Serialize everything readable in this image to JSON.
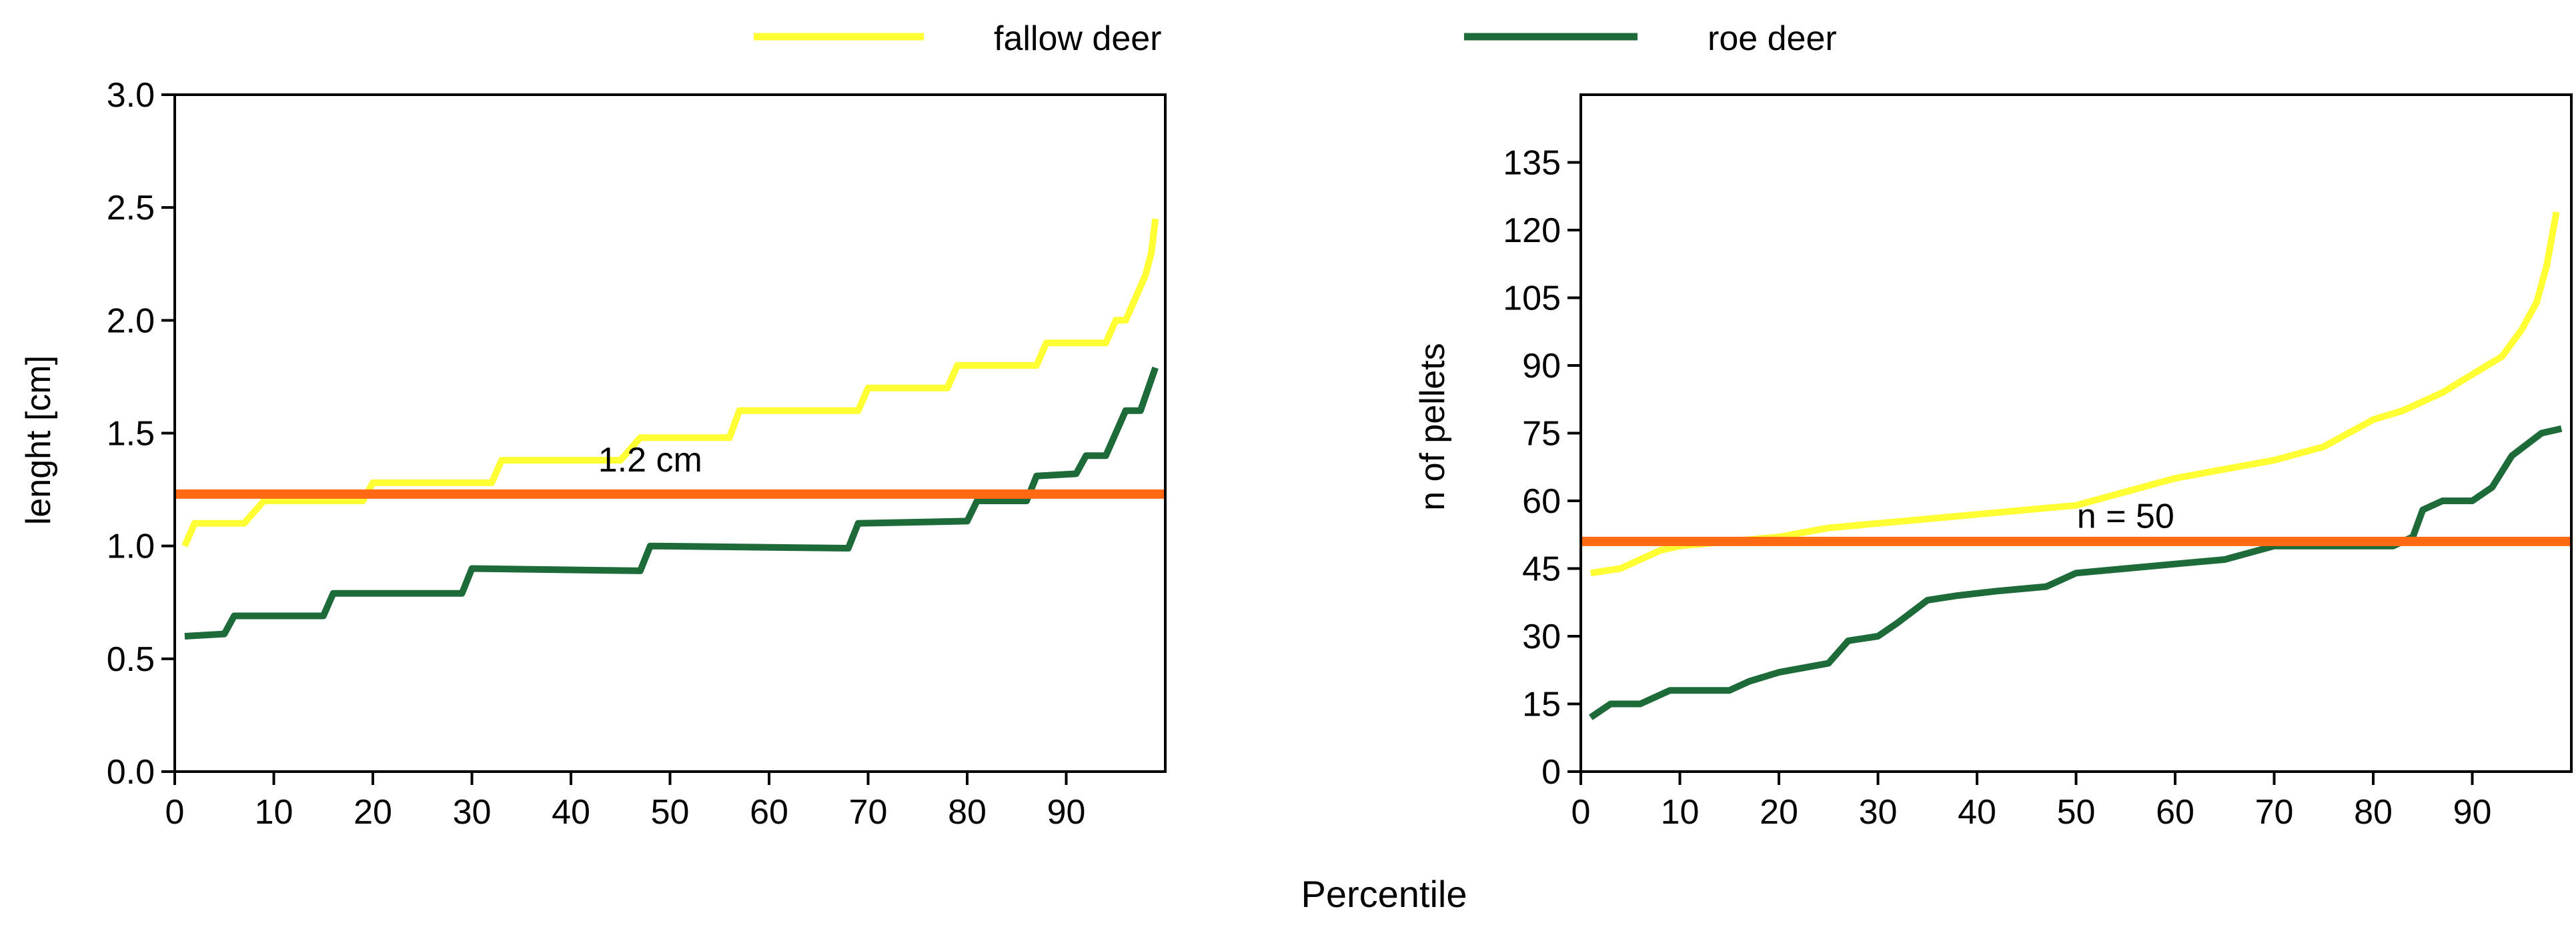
{
  "legend": {
    "position": "top",
    "entries": [
      {
        "name": "fallow deer",
        "color": "#ffff33"
      },
      {
        "name": "roe deer",
        "color": "#1e6b3a"
      }
    ]
  },
  "shared_xlabel": "Percentile",
  "chart_data": [
    {
      "type": "line",
      "xlabel": "",
      "ylabel": "lenght [cm]",
      "xlim": [
        0,
        100
      ],
      "ylim": [
        0,
        3.0
      ],
      "xticks": [
        0,
        10,
        20,
        30,
        40,
        50,
        60,
        70,
        80,
        90
      ],
      "xtick_labels": [
        "0",
        "10",
        "20",
        "30",
        "40",
        "50",
        "60",
        "70",
        "80",
        "90"
      ],
      "yticks": [
        0,
        0.5,
        1.0,
        1.5,
        2.0,
        2.5,
        3.0
      ],
      "ytick_labels": [
        "0.0",
        "0.5",
        "1.0",
        "1.5",
        "2.0",
        "2.5",
        "3.0"
      ],
      "series": [
        {
          "name": "fallow deer",
          "color": "#ffff33",
          "points": [
            [
              1,
              1.0
            ],
            [
              2,
              1.1
            ],
            [
              7,
              1.1
            ],
            [
              9,
              1.2
            ],
            [
              19,
              1.2
            ],
            [
              20,
              1.28
            ],
            [
              32,
              1.28
            ],
            [
              33,
              1.38
            ],
            [
              45,
              1.38
            ],
            [
              47,
              1.48
            ],
            [
              56,
              1.48
            ],
            [
              57,
              1.6
            ],
            [
              69,
              1.6
            ],
            [
              70,
              1.7
            ],
            [
              78,
              1.7
            ],
            [
              79,
              1.8
            ],
            [
              87,
              1.8
            ],
            [
              88,
              1.9
            ],
            [
              94,
              1.9
            ],
            [
              95,
              2.0
            ],
            [
              96,
              2.0
            ],
            [
              97,
              2.1
            ],
            [
              98,
              2.2
            ],
            [
              98.6,
              2.3
            ],
            [
              99,
              2.45
            ]
          ]
        },
        {
          "name": "roe deer",
          "color": "#1e6b3a",
          "points": [
            [
              1,
              0.6
            ],
            [
              5,
              0.61
            ],
            [
              6,
              0.69
            ],
            [
              15,
              0.69
            ],
            [
              16,
              0.79
            ],
            [
              29,
              0.79
            ],
            [
              30,
              0.9
            ],
            [
              47,
              0.89
            ],
            [
              48,
              1.0
            ],
            [
              68,
              0.99
            ],
            [
              69,
              1.1
            ],
            [
              80,
              1.11
            ],
            [
              81,
              1.2
            ],
            [
              86,
              1.2
            ],
            [
              87,
              1.31
            ],
            [
              91,
              1.32
            ],
            [
              92,
              1.4
            ],
            [
              94,
              1.4
            ],
            [
              96,
              1.6
            ],
            [
              97.5,
              1.6
            ],
            [
              99,
              1.79
            ]
          ]
        }
      ],
      "hline": {
        "y": 1.23,
        "color": "#ff6a13"
      },
      "annotation": {
        "text": "1.2 cm",
        "x": 48,
        "y": 1.33
      }
    },
    {
      "type": "line",
      "xlabel": "",
      "ylabel": "n of pellets",
      "xlim": [
        0,
        100
      ],
      "ylim": [
        0,
        150
      ],
      "xticks": [
        0,
        10,
        20,
        30,
        40,
        50,
        60,
        70,
        80,
        90
      ],
      "xtick_labels": [
        "0",
        "10",
        "20",
        "30",
        "40",
        "50",
        "60",
        "70",
        "80",
        "90"
      ],
      "yticks": [
        0,
        15,
        30,
        45,
        60,
        75,
        90,
        105,
        120,
        135
      ],
      "ytick_labels": [
        "0",
        "15",
        "30",
        "45",
        "60",
        "75",
        "90",
        "105",
        "120",
        "135"
      ],
      "series": [
        {
          "name": "fallow deer",
          "color": "#ffff33",
          "points": [
            [
              1,
              44
            ],
            [
              4,
              45
            ],
            [
              6,
              47
            ],
            [
              8,
              49
            ],
            [
              10,
              50
            ],
            [
              15,
              51
            ],
            [
              20,
              52
            ],
            [
              25,
              54
            ],
            [
              30,
              55
            ],
            [
              35,
              56
            ],
            [
              40,
              57
            ],
            [
              45,
              58
            ],
            [
              50,
              59
            ],
            [
              55,
              62
            ],
            [
              60,
              65
            ],
            [
              65,
              67
            ],
            [
              70,
              69
            ],
            [
              75,
              72
            ],
            [
              80,
              78
            ],
            [
              83,
              80
            ],
            [
              87,
              84
            ],
            [
              90,
              88
            ],
            [
              93,
              92
            ],
            [
              95,
              98
            ],
            [
              96.5,
              104
            ],
            [
              97.5,
              112
            ],
            [
              98.5,
              124
            ]
          ]
        },
        {
          "name": "roe deer",
          "color": "#1e6b3a",
          "points": [
            [
              1,
              12
            ],
            [
              3,
              15
            ],
            [
              6,
              15
            ],
            [
              9,
              18
            ],
            [
              15,
              18
            ],
            [
              17,
              20
            ],
            [
              20,
              22
            ],
            [
              25,
              24
            ],
            [
              27,
              29
            ],
            [
              30,
              30
            ],
            [
              32,
              33
            ],
            [
              35,
              38
            ],
            [
              38,
              39
            ],
            [
              42,
              40
            ],
            [
              47,
              41
            ],
            [
              50,
              44
            ],
            [
              55,
              45
            ],
            [
              60,
              46
            ],
            [
              65,
              47
            ],
            [
              70,
              50
            ],
            [
              75,
              50
            ],
            [
              82,
              50
            ],
            [
              84,
              52
            ],
            [
              85,
              58
            ],
            [
              87,
              60
            ],
            [
              90,
              60
            ],
            [
              92,
              63
            ],
            [
              94,
              70
            ],
            [
              97,
              75
            ],
            [
              99,
              76
            ]
          ]
        }
      ],
      "hline": {
        "y": 51,
        "color": "#ff6a13"
      },
      "annotation": {
        "text": "n = 50",
        "x": 55,
        "y": 54
      }
    }
  ]
}
